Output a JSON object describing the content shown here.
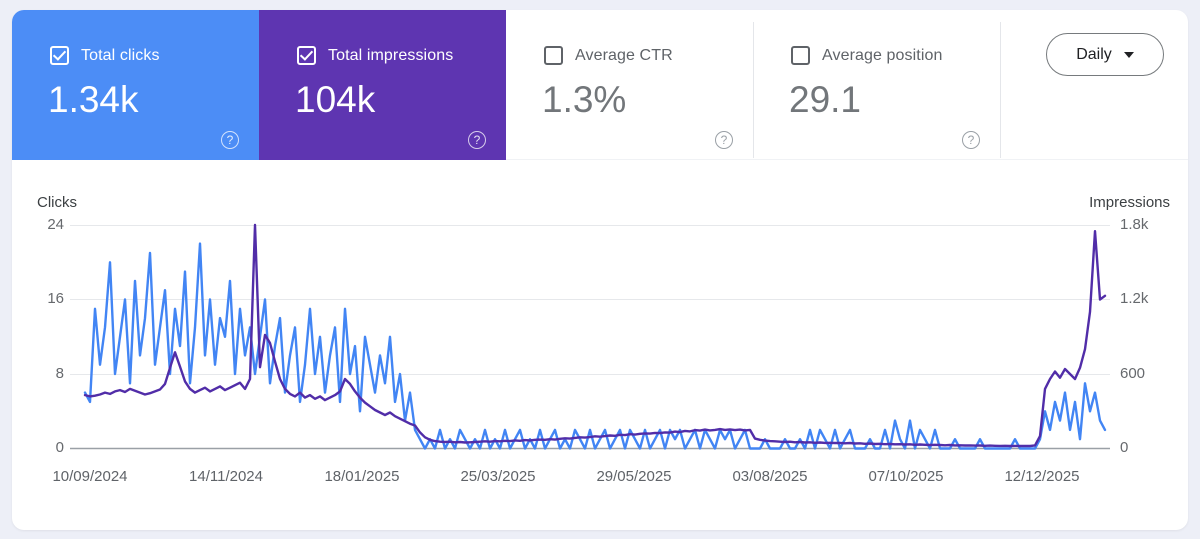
{
  "cards": [
    {
      "label": "Total clicks",
      "value": "1.34k",
      "checked": true,
      "color": "#4c8df6"
    },
    {
      "label": "Total impressions",
      "value": "104k",
      "checked": true,
      "color": "#5e35b1"
    },
    {
      "label": "Average CTR",
      "value": "1.3%",
      "checked": false,
      "color": "#ffffff"
    },
    {
      "label": "Average position",
      "value": "29.1",
      "checked": false,
      "color": "#ffffff"
    }
  ],
  "granularity_selector": {
    "value": "Daily"
  },
  "icons": {
    "help": "?"
  },
  "colors": {
    "clicks_line": "#4285f4",
    "impressions_line": "#512da8",
    "card_blue": "#4c8df6",
    "card_purple": "#5e35b1",
    "page_background": "#edeff7"
  },
  "chart_data": {
    "type": "line",
    "grid": true,
    "legend_position": "none",
    "left_axis": {
      "title": "Clicks",
      "range": [
        0,
        24
      ],
      "ticks_top_to_bottom": [
        "24",
        "16",
        "8",
        "0"
      ]
    },
    "right_axis": {
      "title": "Impressions",
      "range": [
        0,
        1800
      ],
      "ticks_top_to_bottom": [
        "1.8k",
        "1.2k",
        "600",
        "0"
      ]
    },
    "x_ticks": [
      "10/09/2024",
      "14/11/2024",
      "18/01/2025",
      "25/03/2025",
      "29/05/2025",
      "03/08/2025",
      "07/10/2025",
      "12/12/2025"
    ],
    "series": [
      {
        "name": "Clicks",
        "axis": "left",
        "color": "#4285f4",
        "values": [
          6,
          5,
          15,
          9,
          13,
          20,
          8,
          12,
          16,
          7,
          18,
          10,
          14,
          21,
          9,
          13,
          17,
          8,
          15,
          11,
          19,
          7,
          13,
          22,
          10,
          16,
          9,
          14,
          12,
          18,
          8,
          15,
          10,
          13,
          8,
          12,
          16,
          7,
          11,
          14,
          6,
          10,
          13,
          5,
          9,
          15,
          8,
          12,
          6,
          10,
          13,
          5,
          15,
          8,
          11,
          4,
          12,
          9,
          6,
          10,
          7,
          12,
          5,
          8,
          3,
          6,
          2,
          1,
          0,
          1,
          0,
          2,
          0,
          1,
          0,
          2,
          1,
          0,
          1,
          0,
          2,
          0,
          1,
          0,
          2,
          0,
          1,
          2,
          0,
          1,
          0,
          2,
          0,
          1,
          2,
          0,
          1,
          0,
          2,
          1,
          0,
          2,
          0,
          1,
          2,
          0,
          1,
          2,
          0,
          2,
          1,
          0,
          2,
          0,
          1,
          2,
          0,
          2,
          1,
          2,
          0,
          1,
          2,
          0,
          2,
          1,
          0,
          2,
          1,
          2,
          0,
          1,
          2,
          0,
          0,
          0,
          1,
          0,
          0,
          0,
          1,
          0,
          0,
          1,
          0,
          2,
          0,
          2,
          1,
          0,
          2,
          0,
          1,
          2,
          0,
          0,
          0,
          1,
          0,
          0,
          2,
          0,
          3,
          1,
          0,
          3,
          0,
          2,
          1,
          0,
          2,
          0,
          0,
          0,
          1,
          0,
          0,
          0,
          0,
          1,
          0,
          0,
          0,
          0,
          0,
          0,
          1,
          0,
          0,
          0,
          0,
          1,
          4,
          2,
          5,
          3,
          6,
          2,
          5,
          1,
          7,
          4,
          6,
          3,
          2
        ]
      },
      {
        "name": "Impressions",
        "axis": "right",
        "color": "#512da8",
        "values": [
          430,
          420,
          425,
          435,
          450,
          440,
          460,
          470,
          455,
          480,
          465,
          450,
          435,
          445,
          460,
          475,
          520,
          650,
          775,
          660,
          540,
          480,
          450,
          470,
          490,
          460,
          480,
          500,
          470,
          490,
          510,
          530,
          480,
          560,
          1800,
          655,
          915,
          850,
          700,
          560,
          480,
          440,
          420,
          450,
          410,
          430,
          400,
          420,
          390,
          410,
          430,
          460,
          560,
          520,
          460,
          410,
          370,
          340,
          310,
          290,
          270,
          290,
          260,
          240,
          220,
          200,
          185,
          130,
          90,
          70,
          60,
          55,
          52,
          55,
          50,
          52,
          48,
          50,
          52,
          55,
          58,
          55,
          60,
          58,
          62,
          60,
          65,
          62,
          68,
          65,
          70,
          72,
          70,
          75,
          72,
          78,
          82,
          80,
          85,
          90,
          88,
          92,
          98,
          95,
          100,
          105,
          102,
          110,
          108,
          115,
          112,
          118,
          122,
          120,
          126,
          124,
          130,
          128,
          136,
          132,
          142,
          138,
          148,
          144,
          152,
          146,
          150,
          156,
          150,
          154,
          148,
          152,
          146,
          150,
          80,
          70,
          64,
          60,
          58,
          55,
          52,
          55,
          50,
          52,
          48,
          50,
          46,
          48,
          45,
          46,
          44,
          45,
          42,
          44,
          40,
          42,
          38,
          40,
          36,
          38,
          35,
          36,
          34,
          35,
          32,
          34,
          30,
          32,
          30,
          28,
          30,
          28,
          26,
          28,
          25,
          26,
          24,
          25,
          23,
          24,
          22,
          23,
          22,
          21,
          22,
          20,
          21,
          20,
          20,
          20,
          25,
          100,
          480,
          560,
          620,
          570,
          640,
          600,
          560,
          650,
          800,
          1100,
          1750,
          1200,
          1230
        ]
      }
    ]
  }
}
